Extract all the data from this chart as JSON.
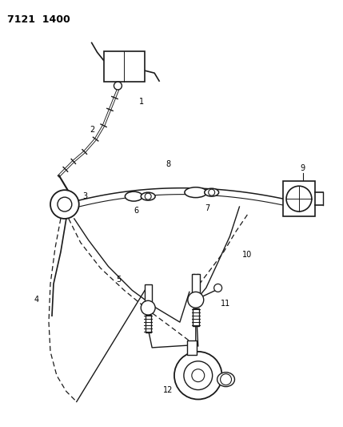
{
  "title": "7121  1400",
  "background_color": "#ffffff",
  "line_color": "#1a1a1a",
  "fig_width": 4.29,
  "fig_height": 5.33,
  "dpi": 100
}
